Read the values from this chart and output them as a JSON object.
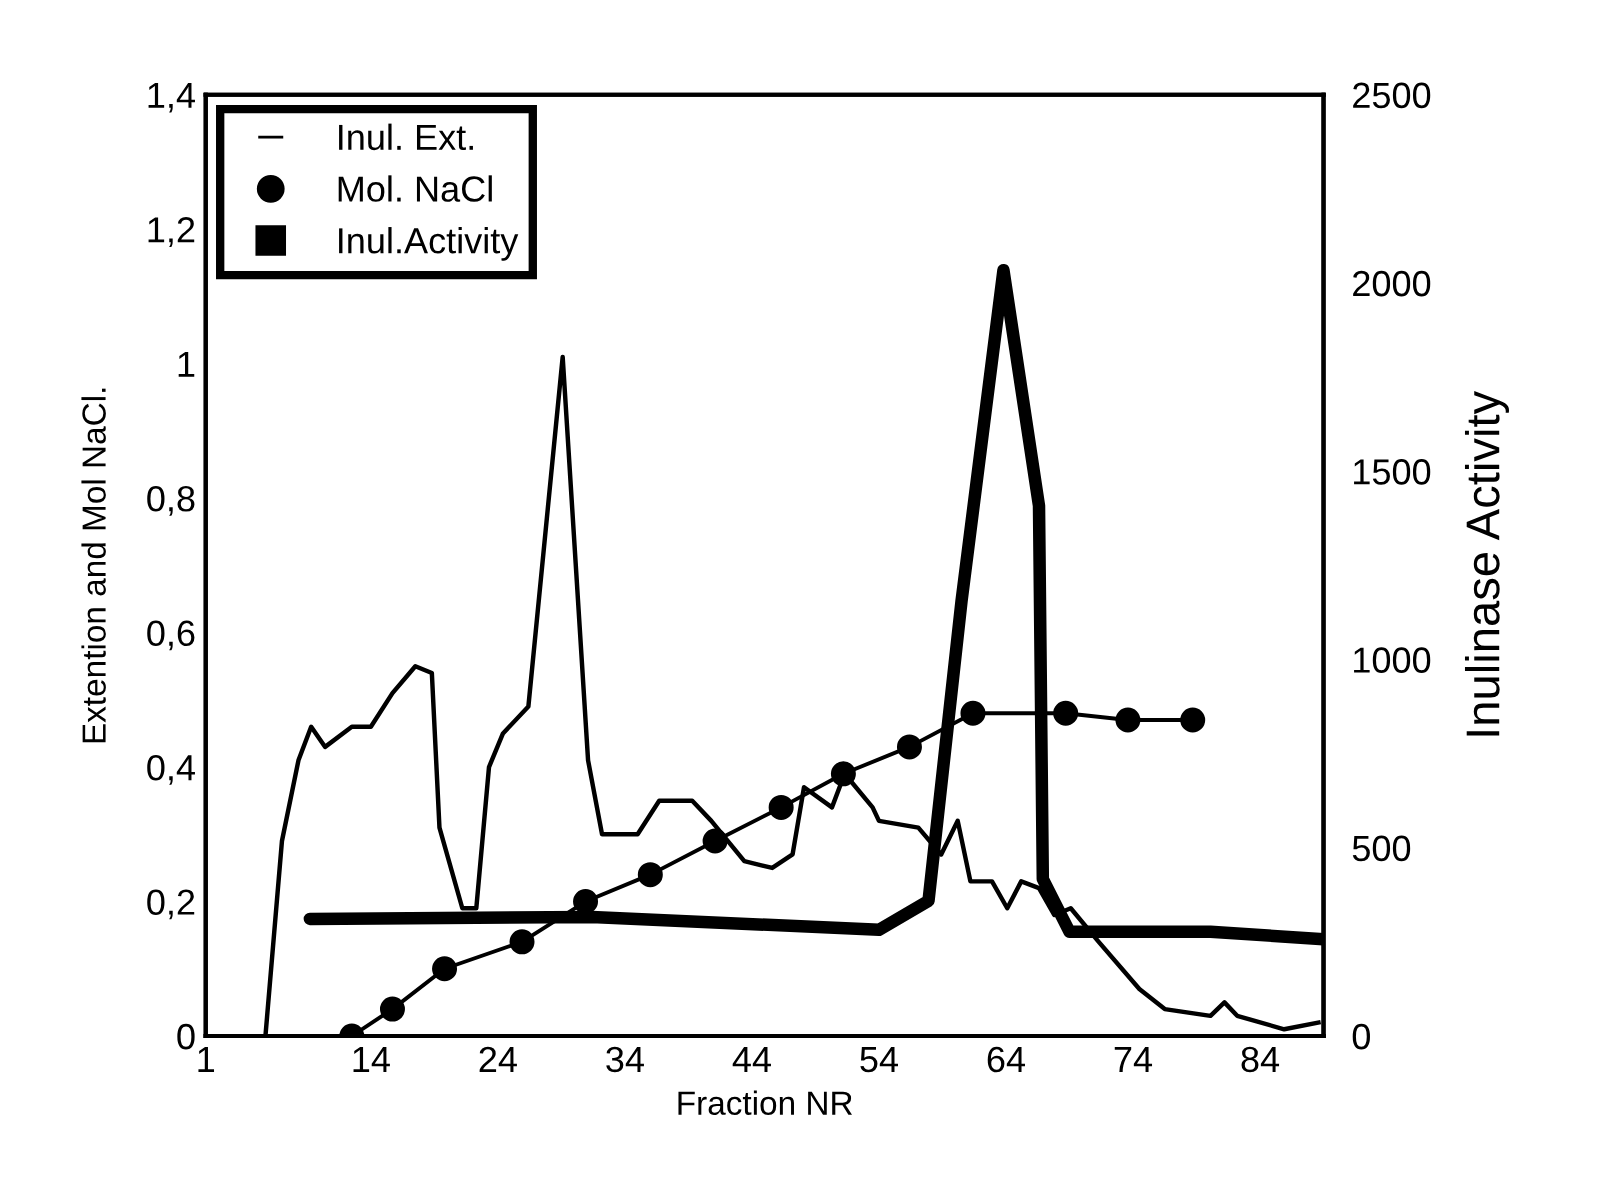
{
  "chart_data": {
    "type": "line",
    "xlabel": "Fraction NR",
    "ylabel": "Extention and Mol NaCl.",
    "y2label": "Inulinase Activity",
    "xlim": [
      1,
      89
    ],
    "xticks": [
      1,
      14,
      24,
      34,
      44,
      54,
      64,
      74,
      84
    ],
    "ylim": [
      0,
      1.4
    ],
    "yticks": [
      0,
      {
        "value": 0.2,
        "label": "0,2"
      },
      {
        "value": 0.4,
        "label": "0,4"
      },
      {
        "value": 0.6,
        "label": "0,6"
      },
      {
        "value": 0.8,
        "label": "0,8"
      },
      1,
      {
        "value": 1.2,
        "label": "1,2"
      },
      {
        "value": 1.4,
        "label": "1,4"
      }
    ],
    "y2lim": [
      0,
      2500
    ],
    "y2ticks": [
      0,
      500,
      1000,
      1500,
      2000,
      2500
    ],
    "grid": false,
    "legend": "top left",
    "series": [
      {
        "name": "Inul. Ext.",
        "color": "#000000",
        "marker": "none",
        "x": [
          5.7,
          7.0,
          8.3,
          9.3,
          10.4,
          12.5,
          14.0,
          15.7,
          17.5,
          18.8,
          19.4,
          21.2,
          22.3,
          23.3,
          24.4,
          26.4,
          29.1,
          31.1,
          32.2,
          35.0,
          36.7,
          39.3,
          40.8,
          43.4,
          45.6,
          47.2,
          48.1,
          50.3,
          51.3,
          53.5,
          54.0,
          57.1,
          58.9,
          60.2,
          61.2,
          62.9,
          64.1,
          65.2,
          66.6,
          67.8,
          69.1,
          71.3,
          74.5,
          76.5,
          80.1,
          81.2,
          82.2,
          85.9,
          88.6
        ],
        "values": [
          0,
          0.29,
          0.41,
          0.46,
          0.43,
          0.46,
          0.46,
          0.51,
          0.55,
          0.54,
          0.31,
          0.19,
          0.19,
          0.4,
          0.45,
          0.49,
          1.01,
          0.41,
          0.3,
          0.3,
          0.35,
          0.35,
          0.32,
          0.26,
          0.25,
          0.27,
          0.37,
          0.34,
          0.39,
          0.34,
          0.32,
          0.31,
          0.27,
          0.32,
          0.23,
          0.23,
          0.19,
          0.23,
          0.22,
          0.18,
          0.19,
          0.14,
          0.07,
          0.04,
          0.03,
          0.05,
          0.03,
          0.01,
          0.02
        ]
      },
      {
        "name": "Mol. NaCl",
        "color": "#000000",
        "marker": "circle",
        "x": [
          12.5,
          15.7,
          19.8,
          25.9,
          30.9,
          36.0,
          41.1,
          46.3,
          51.2,
          56.4,
          61.4,
          68.7,
          73.6,
          78.7
        ],
        "values": [
          0,
          0.04,
          0.1,
          0.14,
          0.2,
          0.24,
          0.29,
          0.34,
          0.39,
          0.43,
          0.48,
          0.48,
          0.47,
          0.47
        ]
      },
      {
        "name": "Inul.Activity",
        "color": "#000000",
        "marker": "none",
        "axis": "y2",
        "x": [
          9.2,
          31.4,
          54.0,
          57.9,
          60.5,
          63.8,
          66.6,
          66.9,
          69.0,
          80.1,
          89
        ],
        "values": [
          311,
          316,
          282,
          359,
          1155,
          2034,
          1408,
          417,
          277,
          277,
          257
        ]
      }
    ]
  }
}
